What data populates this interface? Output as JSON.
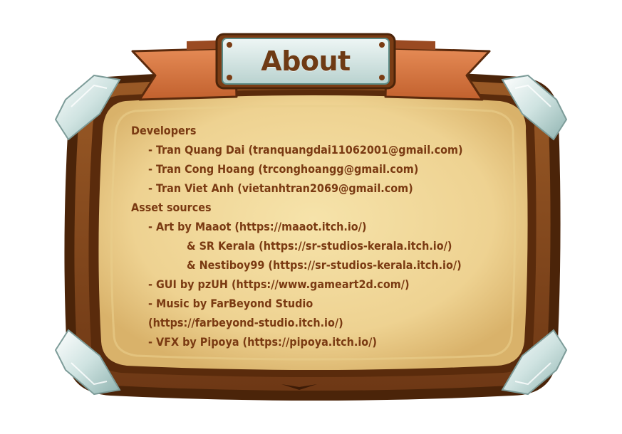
{
  "title": "About",
  "credits": [
    {
      "text": "Developers",
      "indent": 0
    },
    {
      "text": "- Tran Quang Dai (tranquangdai11062001@gmail.com)",
      "indent": 1
    },
    {
      "text": "- Tran Cong Hoang (trconghoangg@gmail.com)",
      "indent": 1
    },
    {
      "text": "- Tran Viet Anh (vietanhtran2069@gmail.com)",
      "indent": 1
    },
    {
      "text": "Asset sources",
      "indent": 0
    },
    {
      "text": "- Art by Maaot (https://maaot.itch.io/)",
      "indent": 1
    },
    {
      "text": "& SR Kerala (https://sr-studios-kerala.itch.io/)",
      "indent": 2
    },
    {
      "text": "& Nestiboy99 (https://sr-studios-kerala.itch.io/)",
      "indent": 2
    },
    {
      "text": "- GUI by pzUH (https://www.gameart2d.com/)",
      "indent": 1
    },
    {
      "text": "- Music by FarBeyond Studio",
      "indent": 1
    },
    {
      "text": "(https://farbeyond-studio.itch.io/)",
      "indent": 1
    },
    {
      "text": "- VFX by Pipoya (https://pipoya.itch.io/)",
      "indent": 1
    }
  ],
  "colors": {
    "parchment": "#f2d89a",
    "wood": "#8a4a1c",
    "text": "#7a3a12",
    "ribbon": "#d97a45",
    "plaque": "#d8e6e4"
  },
  "icons": [
    "ribbon-left-icon",
    "ribbon-right-icon",
    "corner-gem-icon",
    "rivet-icon"
  ]
}
